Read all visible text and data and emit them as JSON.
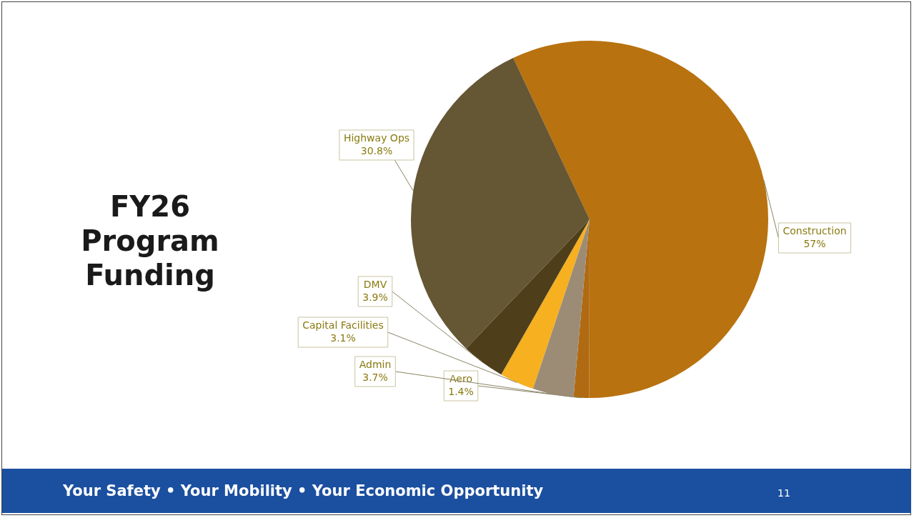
{
  "chart_data": {
    "type": "pie",
    "title": "FY26 Program Funding",
    "categories": [
      "Construction",
      "Aero",
      "Admin",
      "Capital Facilities",
      "DMV",
      "Highway Ops"
    ],
    "values": [
      57,
      1.4,
      3.7,
      3.1,
      3.9,
      30.8
    ],
    "value_labels": [
      "57%",
      "1.4%",
      "3.7%",
      "3.1%",
      "3.9%",
      "30.8%"
    ],
    "colors": [
      "#b8720f",
      "#b06a12",
      "#9c8c76",
      "#f6b020",
      "#4e3f1a",
      "#655634"
    ],
    "legend": false,
    "annotations": [
      "Your Safety • Your Mobility • Your Economic Opportunity",
      "11"
    ]
  }
}
